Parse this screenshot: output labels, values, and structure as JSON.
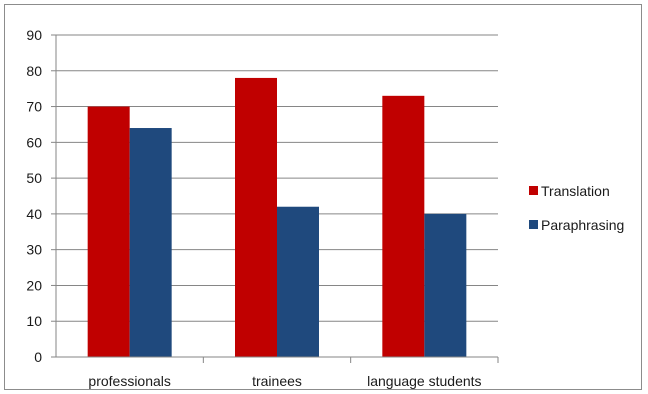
{
  "chart_data": {
    "type": "bar",
    "categories": [
      "professionals",
      "trainees",
      "language students"
    ],
    "series": [
      {
        "name": "Translation",
        "values": [
          70,
          78,
          73
        ],
        "color": "#c00000"
      },
      {
        "name": "Paraphrasing",
        "values": [
          64,
          42,
          40
        ],
        "color": "#1f497d"
      }
    ],
    "title": "",
    "xlabel": "",
    "ylabel": "",
    "ylim": [
      0,
      90
    ],
    "yticks": [
      0,
      10,
      20,
      30,
      40,
      50,
      60,
      70,
      80,
      90
    ],
    "grid": true,
    "legend": "right"
  }
}
